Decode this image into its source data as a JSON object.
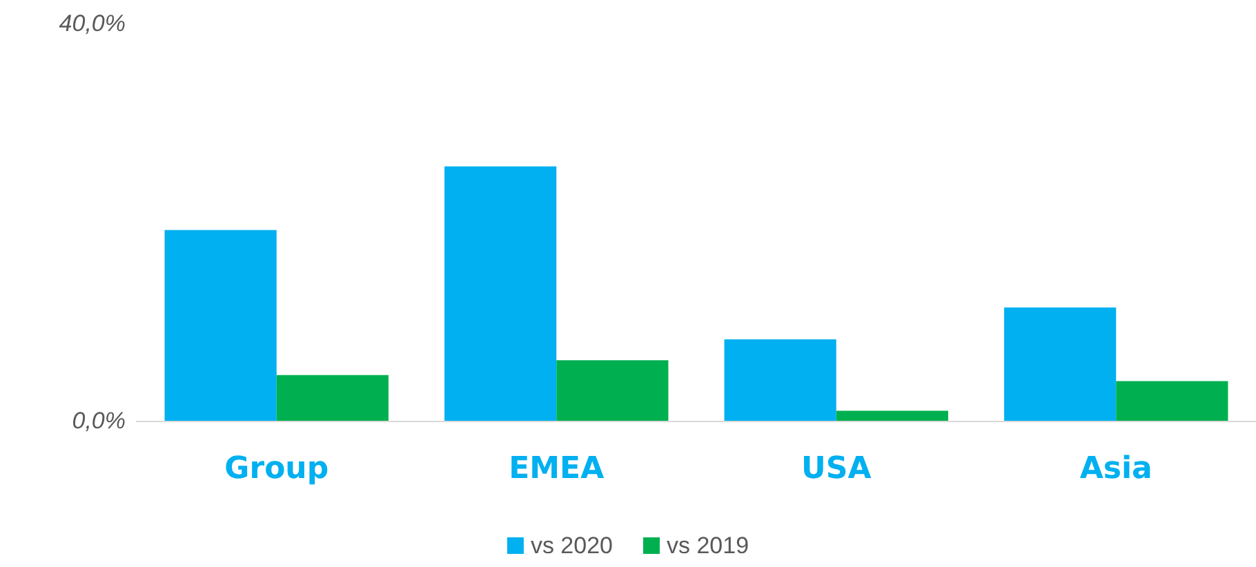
{
  "chart_data": {
    "type": "bar",
    "categories": [
      "Group",
      "EMEA",
      "USA",
      "Asia"
    ],
    "series": [
      {
        "name": "vs 2020",
        "color": "#00b0f0",
        "values": [
          19.2,
          25.6,
          8.2,
          11.4
        ]
      },
      {
        "name": "vs 2019",
        "color": "#00b050",
        "values": [
          4.6,
          6.1,
          1.0,
          4.0
        ]
      }
    ],
    "ylim": [
      0,
      40
    ],
    "yticks": [
      {
        "value": 0,
        "label": "0,0%"
      },
      {
        "value": 40,
        "label": "40,0%"
      }
    ],
    "grid": false,
    "legend": "bottom"
  }
}
